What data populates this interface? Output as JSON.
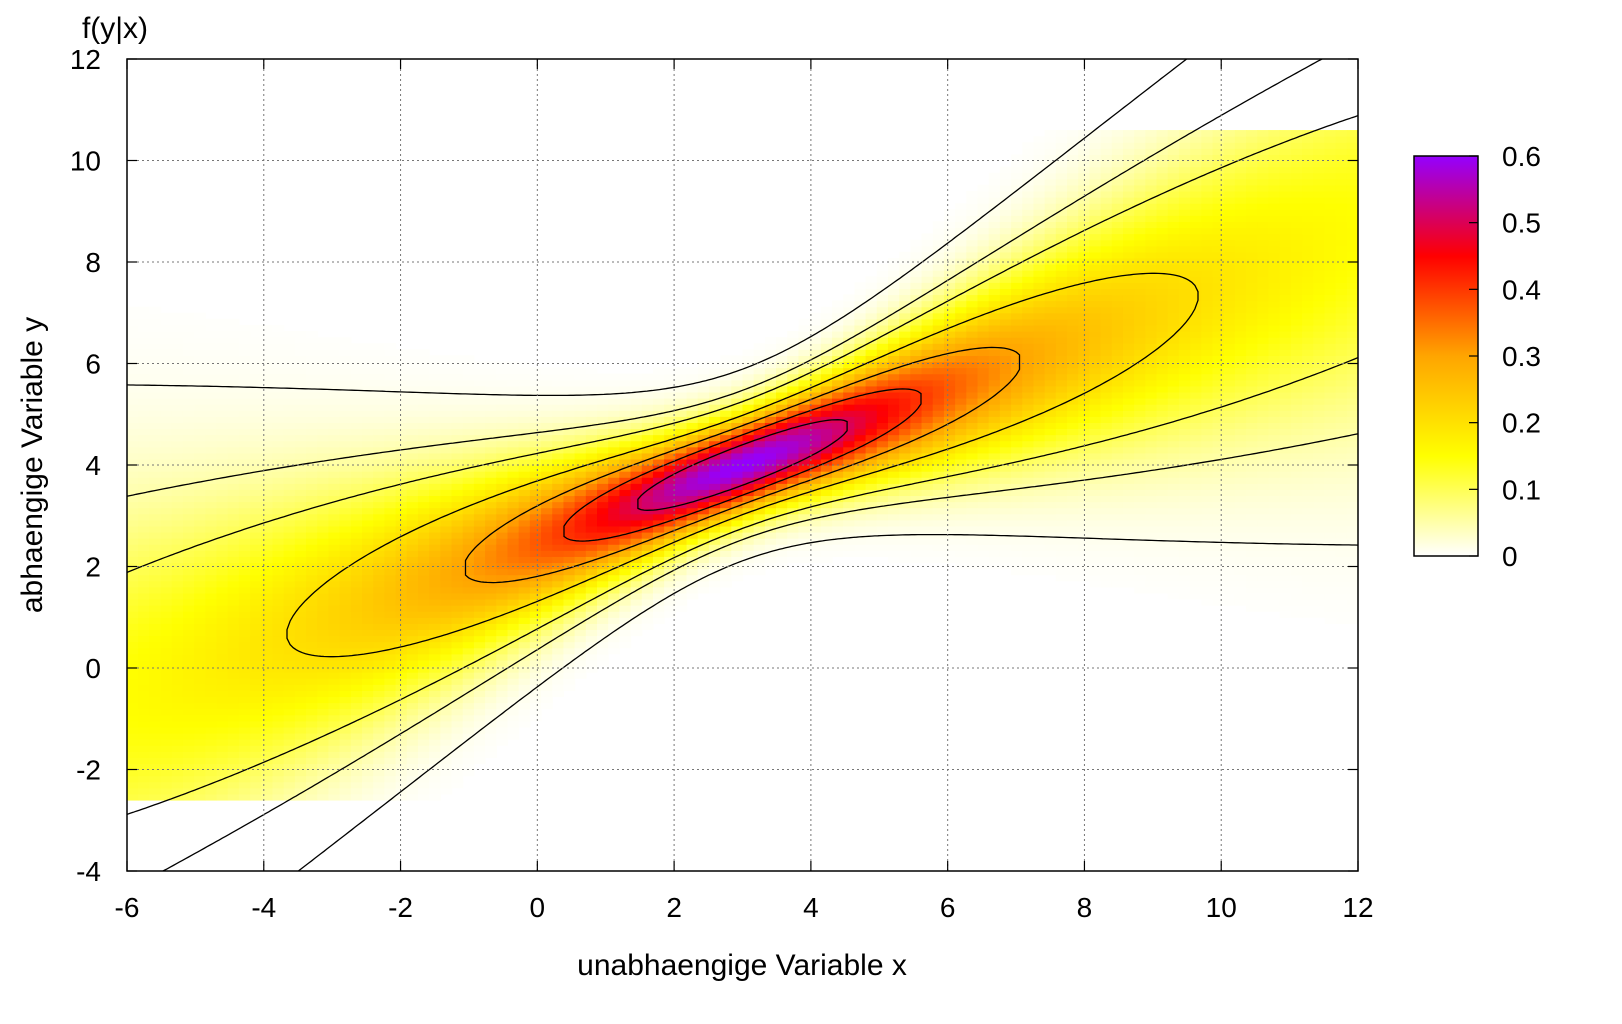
{
  "chart_data": {
    "type": "heatmap",
    "title": "",
    "corner_label": "f(y|x)",
    "xlabel": "unabhaengige Variable x",
    "ylabel": "abhaengige Variable y",
    "xlim": [
      -6,
      12
    ],
    "ylim": [
      -4,
      12
    ],
    "x_ticks": [
      "-6",
      "-4",
      "-2",
      "0",
      "2",
      "4",
      "6",
      "8",
      "10",
      "12"
    ],
    "y_ticks": [
      "-4",
      "-2",
      "0",
      "2",
      "4",
      "6",
      "8",
      "10",
      "12"
    ],
    "grid": true,
    "colorbar": {
      "range": [
        0,
        0.6
      ],
      "ticks": [
        "0",
        "0.1",
        "0.2",
        "0.3",
        "0.4",
        "0.5",
        "0.6"
      ],
      "colors": [
        "#ffffff",
        "#ffff00",
        "#ffa500",
        "#ff0000",
        "#9400ff"
      ],
      "placement": "right"
    },
    "data_extent": {
      "x": [
        -6,
        12
      ],
      "y": [
        -2.6,
        10.6
      ]
    },
    "density": {
      "peak": 0.6,
      "peak_at": {
        "x": 3,
        "y": 4
      },
      "regression_line": {
        "slope": 0.5,
        "intercept": 2.5
      },
      "sd_at_peak": 0.66,
      "sd_spread_per_unit_x": 0.28
    },
    "contour_levels": [
      0.01,
      0.05,
      0.1,
      0.2,
      0.3,
      0.4,
      0.5
    ]
  }
}
